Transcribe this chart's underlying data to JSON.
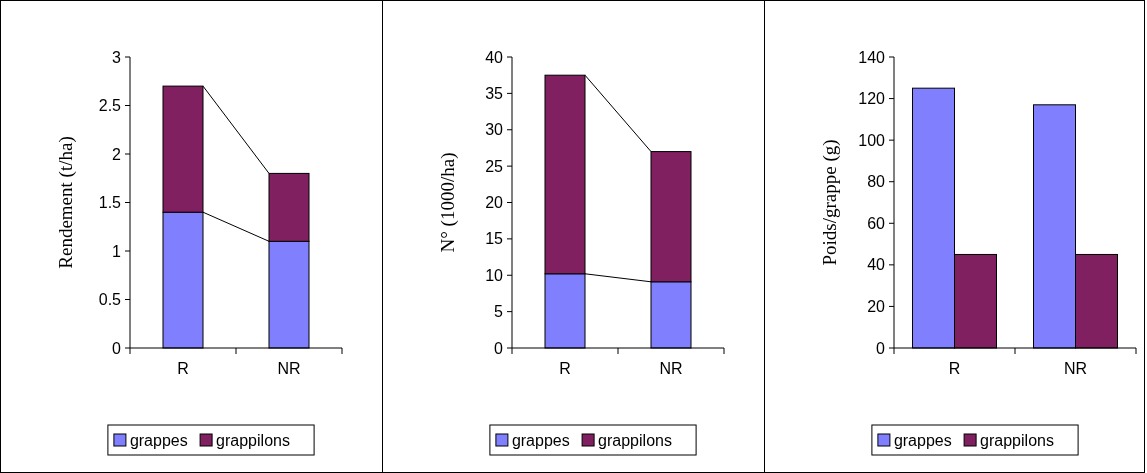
{
  "chart_data": [
    {
      "type": "bar",
      "stacked": true,
      "categories": [
        "R",
        "NR"
      ],
      "ylabel": "Rendement (t/ha)",
      "ylim": [
        0,
        3
      ],
      "yticks": [
        0,
        {
          "value": 0.5,
          "label": "0.5"
        },
        1,
        {
          "value": 1.5,
          "label": "1.5"
        },
        2,
        {
          "value": 2.5,
          "label": "2.5"
        },
        3
      ],
      "legend": "bottom",
      "series": [
        {
          "name": "grappes",
          "color": "#8080ff",
          "values": [
            1.4,
            1.1
          ]
        },
        {
          "name": "grappilons",
          "color": "#802060",
          "values": [
            1.3,
            0.7
          ]
        }
      ]
    },
    {
      "type": "bar",
      "stacked": true,
      "categories": [
        "R",
        "NR"
      ],
      "ylabel": "N°  (1000/ha)",
      "ylim": [
        0,
        40
      ],
      "yticks": [
        0,
        5,
        10,
        15,
        20,
        25,
        30,
        35,
        40
      ],
      "legend": "bottom",
      "series": [
        {
          "name": "grappes",
          "color": "#8080ff",
          "values": [
            10.2,
            9.1
          ]
        },
        {
          "name": "grappilons",
          "color": "#802060",
          "values": [
            27.3,
            17.9
          ]
        }
      ]
    },
    {
      "type": "bar",
      "categories": [
        "R",
        "NR"
      ],
      "ylabel": "Poids/grappe (g)",
      "ylim": [
        0,
        140
      ],
      "yticks": [
        0,
        20,
        40,
        60,
        80,
        100,
        120,
        140
      ],
      "legend": "bottom",
      "series": [
        {
          "name": "grappes",
          "color": "#8080ff",
          "values": [
            125,
            117
          ]
        },
        {
          "name": "grappilons",
          "color": "#802060",
          "values": [
            45,
            45
          ]
        }
      ]
    }
  ]
}
